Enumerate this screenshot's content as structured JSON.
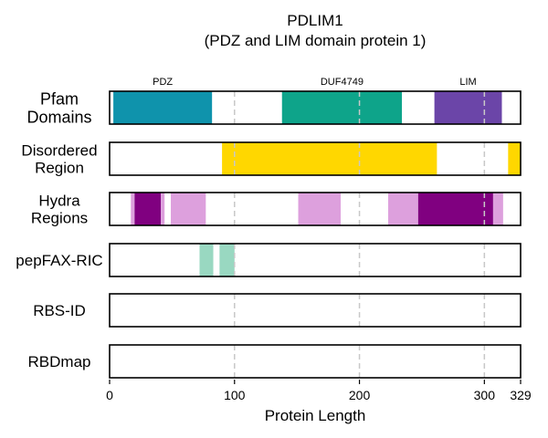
{
  "chart_data": {
    "type": "bar",
    "title": "PDLIM1",
    "subtitle": "(PDZ and LIM domain protein 1)",
    "xlabel": "Protein Length",
    "xlim": [
      0,
      329
    ],
    "xticks": [
      0,
      100,
      200,
      300,
      329
    ],
    "grid_lines": [
      100,
      200,
      300
    ],
    "tracks": [
      {
        "name": "Pfam\nDomains",
        "segments": [
          {
            "label": "PDZ",
            "start": 3,
            "end": 82,
            "color": "#0f93ac"
          },
          {
            "label": "DUF4749",
            "start": 138,
            "end": 234,
            "color": "#0ea48a"
          },
          {
            "label": "LIM",
            "start": 260,
            "end": 314,
            "color": "#6b45a8"
          }
        ]
      },
      {
        "name": "Disordered\nRegion",
        "segments": [
          {
            "start": 90,
            "end": 262,
            "color": "#ffd700"
          },
          {
            "start": 319,
            "end": 329,
            "color": "#ffd700"
          }
        ]
      },
      {
        "name": "Hydra\nRegions",
        "segments": [
          {
            "start": 17,
            "end": 20,
            "color": "#dda0dd"
          },
          {
            "start": 20,
            "end": 41,
            "color": "#800080"
          },
          {
            "start": 41,
            "end": 44,
            "color": "#dda0dd"
          },
          {
            "start": 49,
            "end": 77,
            "color": "#dda0dd"
          },
          {
            "start": 151,
            "end": 185,
            "color": "#dda0dd"
          },
          {
            "start": 223,
            "end": 247,
            "color": "#dda0dd"
          },
          {
            "start": 247,
            "end": 307,
            "color": "#800080"
          },
          {
            "start": 307,
            "end": 315,
            "color": "#dda0dd"
          }
        ]
      },
      {
        "name": "pepFAX-RIC",
        "segments": [
          {
            "start": 72,
            "end": 83,
            "color": "#99d8c1"
          },
          {
            "start": 88,
            "end": 100,
            "color": "#99d8c1"
          }
        ]
      },
      {
        "name": "RBS-ID",
        "segments": []
      },
      {
        "name": "RBDmap",
        "segments": []
      }
    ]
  }
}
